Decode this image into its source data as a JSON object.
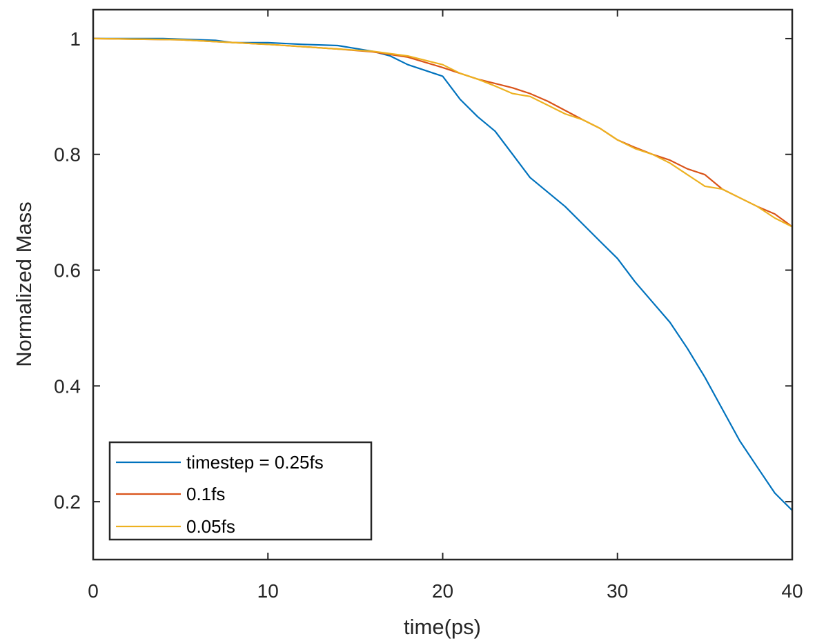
{
  "chart_data": {
    "type": "line",
    "title": "",
    "xlabel": "time(ps)",
    "ylabel": "Normalized Mass",
    "xlim": [
      0,
      40
    ],
    "ylim": [
      0.1,
      1.05
    ],
    "xticks": [
      0,
      10,
      20,
      30,
      40
    ],
    "xtick_labels": [
      "0",
      "10",
      "20",
      "30",
      "40"
    ],
    "yticks": [
      0.2,
      0.4,
      0.6,
      0.8,
      1
    ],
    "ytick_labels": [
      "0.2",
      "0.4",
      "0.6",
      "0.8",
      "1"
    ],
    "grid": false,
    "legend_position": "bottom-left",
    "series": [
      {
        "name": "timestep = 0.25fs",
        "color": "#0072BD",
        "x": [
          0,
          2,
          4,
          6,
          7,
          8,
          10,
          12,
          14,
          15,
          16,
          17,
          18,
          19,
          20,
          21,
          22,
          23,
          24,
          25,
          26,
          27,
          28,
          29,
          30,
          31,
          32,
          33,
          34,
          35,
          36,
          37,
          38,
          39,
          39.5,
          40
        ],
        "y": [
          1.0,
          1.0,
          1.0,
          0.998,
          0.997,
          0.993,
          0.993,
          0.99,
          0.988,
          0.983,
          0.978,
          0.97,
          0.955,
          0.945,
          0.935,
          0.895,
          0.865,
          0.84,
          0.8,
          0.76,
          0.735,
          0.71,
          0.68,
          0.65,
          0.62,
          0.58,
          0.545,
          0.51,
          0.465,
          0.415,
          0.36,
          0.305,
          0.26,
          0.215,
          0.2,
          0.185
        ]
      },
      {
        "name": "0.1fs",
        "color": "#D95319",
        "x": [
          0,
          5,
          10,
          14,
          16,
          18,
          20,
          21,
          22,
          24,
          25,
          26,
          27,
          28,
          29,
          30,
          31,
          32,
          33,
          34,
          35,
          36,
          37,
          38,
          39,
          40
        ],
        "y": [
          1.0,
          0.998,
          0.99,
          0.982,
          0.977,
          0.968,
          0.95,
          0.94,
          0.93,
          0.915,
          0.905,
          0.892,
          0.876,
          0.86,
          0.845,
          0.825,
          0.812,
          0.8,
          0.79,
          0.775,
          0.765,
          0.74,
          0.725,
          0.71,
          0.697,
          0.675
        ]
      },
      {
        "name": "0.05fs",
        "color": "#EDB120",
        "x": [
          0,
          5,
          10,
          14,
          16,
          18,
          20,
          21,
          22,
          23,
          24,
          25,
          26,
          27,
          28,
          29,
          30,
          31,
          32,
          33,
          34,
          35,
          36,
          37,
          38,
          39,
          40
        ],
        "y": [
          1.0,
          0.998,
          0.99,
          0.982,
          0.978,
          0.97,
          0.955,
          0.94,
          0.93,
          0.918,
          0.905,
          0.9,
          0.885,
          0.87,
          0.86,
          0.845,
          0.825,
          0.81,
          0.8,
          0.785,
          0.765,
          0.745,
          0.74,
          0.725,
          0.71,
          0.69,
          0.675
        ]
      }
    ]
  }
}
